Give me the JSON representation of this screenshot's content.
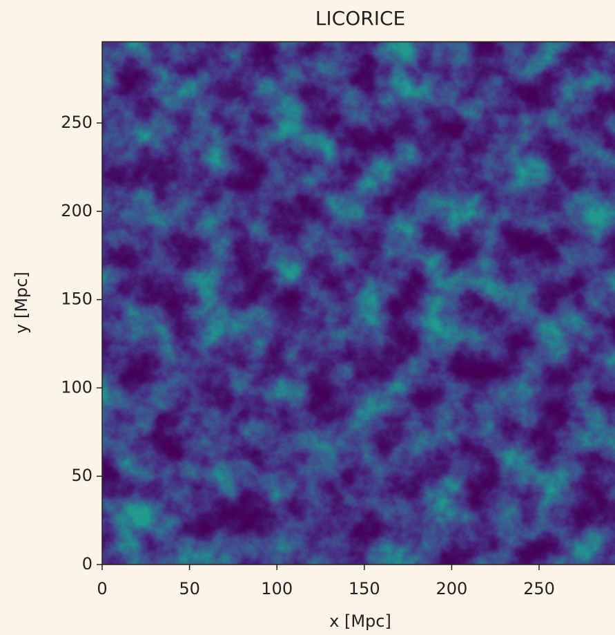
{
  "chart_data": {
    "type": "image",
    "title": "LICORICE",
    "xlabel": "x [Mpc]",
    "ylabel": "y [Mpc]",
    "xlim": [
      0,
      296
    ],
    "ylim": [
      0,
      296
    ],
    "xticks": [
      0,
      50,
      100,
      150,
      200,
      250
    ],
    "yticks": [
      0,
      50,
      100,
      150,
      200,
      250
    ]
  }
}
